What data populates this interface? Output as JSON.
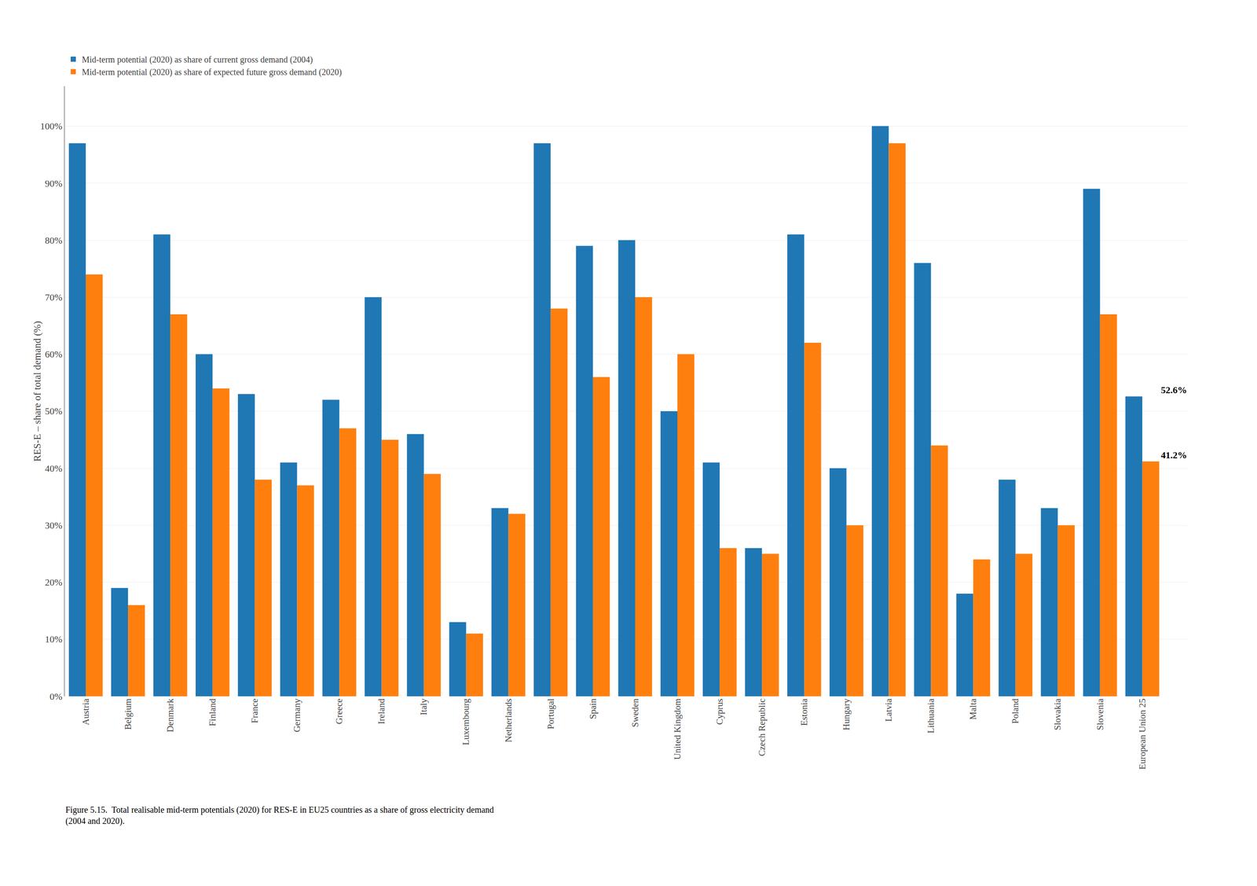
{
  "chart_data": {
    "type": "bar",
    "categories": [
      "Austria",
      "Belgium",
      "Denmark",
      "Finland",
      "France",
      "Germany",
      "Greece",
      "Ireland",
      "Italy",
      "Luxembourg",
      "Netherlands",
      "Portugal",
      "Spain",
      "Sweden",
      "United Kingdom",
      "Cyprus",
      "Czech Republic",
      "Estonia",
      "Hungary",
      "Latvia",
      "Lithuania",
      "Malta",
      "Poland",
      "Slovakia",
      "Slovenia",
      "European Union 25"
    ],
    "series": [
      {
        "name": "Mid-term potential (2020) as share of current gross demand (2004)",
        "values": [
          97,
          19,
          81,
          60,
          53,
          41,
          52,
          70,
          46,
          13,
          33,
          97,
          79,
          80,
          50,
          41,
          26,
          81,
          40,
          100,
          76,
          18,
          38,
          33,
          89,
          52.6
        ]
      },
      {
        "name": "Mid-term potential (2020) as share of expected future gross demand (2020)",
        "values": [
          74,
          16,
          67,
          54,
          38,
          37,
          47,
          45,
          39,
          11,
          32,
          68,
          56,
          70,
          60,
          26,
          25,
          62,
          30,
          97,
          44,
          24,
          25,
          30,
          67,
          41.2
        ]
      }
    ],
    "ylabel": "RES-E – share of total demand (%)",
    "ylim": [
      0,
      107
    ],
    "yticks": [
      {
        "value": 0,
        "label": "0%"
      },
      {
        "value": 10,
        "label": "10%"
      },
      {
        "value": 20,
        "label": "20%"
      },
      {
        "value": 30,
        "label": "30%"
      },
      {
        "value": 40,
        "label": "40%"
      },
      {
        "value": 50,
        "label": "50%"
      },
      {
        "value": 60,
        "label": "60%"
      },
      {
        "value": 70,
        "label": "70%"
      },
      {
        "value": 80,
        "label": "80%"
      },
      {
        "value": 90,
        "label": "90%"
      },
      {
        "value": 100,
        "label": "100%"
      }
    ],
    "grid": true,
    "legend": "upper left",
    "annotations": [
      {
        "text": "52.6%",
        "category": "European Union 25",
        "value": 52.6
      },
      {
        "text": "41.2%",
        "category": "European Union 25",
        "value": 41.2
      }
    ],
    "caption": "Figure 5.15.  Total realisable mid-term potentials (2020) for RES-E in EU25 countries as a share of gross electricity demand\n(2004 and 2020)."
  }
}
